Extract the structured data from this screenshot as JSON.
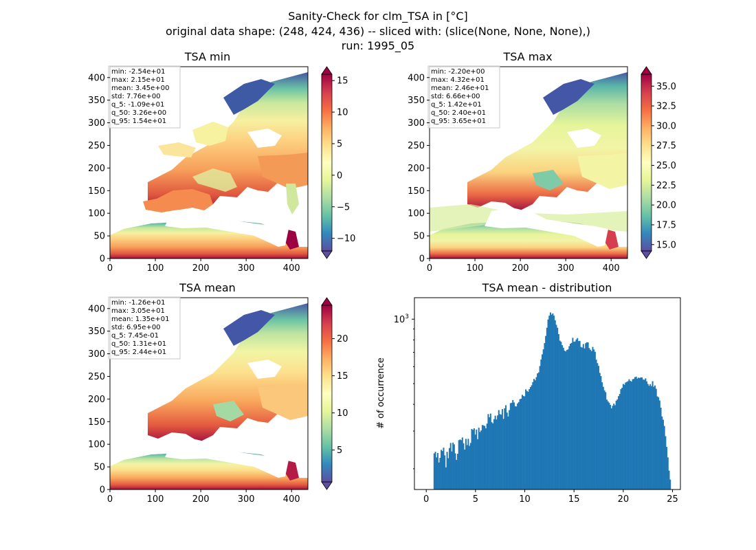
{
  "figure": {
    "title_lines": [
      "Sanity-Check for clm_TSA in [°C]",
      "original data shape: (248, 424, 436) -- sliced with: (slice(None, None, None),)",
      "run: 1995_05"
    ]
  },
  "chart_data": [
    {
      "id": "tsa_min",
      "type": "heatmap",
      "title": "TSA min",
      "x_ticks": [
        0,
        100,
        200,
        300,
        400
      ],
      "y_ticks": [
        0,
        50,
        100,
        150,
        200,
        250,
        300,
        350,
        400
      ],
      "xlim": [
        0,
        436
      ],
      "ylim": [
        0,
        424
      ],
      "colormap": "Spectral_r",
      "colorbar": {
        "range": [
          -12,
          16
        ],
        "ticks": [
          -10,
          -5,
          0,
          5,
          10,
          15
        ],
        "tick_labels": [
          "−10",
          "−5",
          "0",
          "5",
          "10",
          "15"
        ],
        "extend": "both"
      },
      "stats": [
        "min: -2.54e+01",
        "max: 2.15e+01",
        "mean: 3.45e+00",
        "std: 7.76e+00",
        "q_5: -1.09e+01",
        "q_50: 3.26e+00",
        "q_95: 1.54e+01"
      ]
    },
    {
      "id": "tsa_max",
      "type": "heatmap",
      "title": "TSA max",
      "x_ticks": [
        0,
        100,
        200,
        300,
        400
      ],
      "y_ticks": [
        0,
        50,
        100,
        150,
        200,
        250,
        300,
        350,
        400
      ],
      "xlim": [
        0,
        436
      ],
      "ylim": [
        0,
        424
      ],
      "colormap": "Spectral_r",
      "colorbar": {
        "range": [
          14.2,
          36.5
        ],
        "ticks": [
          15.0,
          17.5,
          20.0,
          22.5,
          25.0,
          27.5,
          30.0,
          32.5,
          35.0
        ],
        "tick_labels": [
          "15.0",
          "17.5",
          "20.0",
          "22.5",
          "25.0",
          "27.5",
          "30.0",
          "32.5",
          "35.0"
        ],
        "extend": "both"
      },
      "stats": [
        "min: -2.20e+00",
        "max: 4.32e+01",
        "mean: 2.46e+01",
        "std: 6.66e+00",
        "q_5: 1.42e+01",
        "q_50: 2.40e+01",
        "q_95: 3.65e+01"
      ]
    },
    {
      "id": "tsa_mean",
      "type": "heatmap",
      "title": "TSA mean",
      "x_ticks": [
        0,
        100,
        200,
        300,
        400
      ],
      "y_ticks": [
        0,
        50,
        100,
        150,
        200,
        250,
        300,
        350,
        400
      ],
      "xlim": [
        0,
        436
      ],
      "ylim": [
        0,
        424
      ],
      "colormap": "Spectral_r",
      "colorbar": {
        "range": [
          0.7,
          24.5
        ],
        "ticks": [
          5,
          10,
          15,
          20
        ],
        "tick_labels": [
          "5",
          "10",
          "15",
          "20"
        ],
        "extend": "both"
      },
      "stats": [
        "min: -1.26e+01",
        "max: 3.05e+01",
        "mean: 1.35e+01",
        "std: 6.95e+00",
        "q_5: 7.45e-01",
        "q_50: 1.31e+01",
        "q_95: 2.44e+01"
      ]
    },
    {
      "id": "tsa_mean_dist",
      "type": "bar",
      "title": "TSA mean - distribution",
      "ylabel": "# of occurrence",
      "yscale": "log",
      "xlim": [
        -1.2,
        25.8
      ],
      "ylim": [
        160,
        1260
      ],
      "x_ticks": [
        0,
        5,
        10,
        15,
        20,
        25
      ],
      "y_ticks": [
        1000
      ],
      "y_tick_labels": [
        "10"
      ],
      "y_tick_exponent": "3",
      "color": "#1f77b4",
      "bins": {
        "start": 0.74,
        "width": 0.1192,
        "counts": [
          236,
          240,
          226,
          237,
          214,
          225,
          245,
          242,
          251,
          231,
          203,
          240,
          224,
          250,
          264,
          241,
          265,
          260,
          236,
          220,
          235,
          272,
          274,
          272,
          280,
          263,
          246,
          276,
          258,
          276,
          256,
          264,
          307,
          304,
          309,
          289,
          305,
          275,
          311,
          297,
          302,
          320,
          319,
          317,
          309,
          325,
          360,
          348,
          362,
          330,
          326,
          341,
          354,
          340,
          355,
          376,
          360,
          358,
          380,
          342,
          383,
          396,
          366,
          351,
          376,
          405,
          407,
          419,
          408,
          392,
          391,
          404,
          410,
          423,
          425,
          443,
          438,
          436,
          470,
          462,
          458,
          471,
          482,
          491,
          508,
          526,
          518,
          536,
          558,
          564,
          604,
          648,
          685,
          723,
          773,
          835,
          912,
          997,
          1038,
          1075,
          1050,
          1064,
          1039,
          988,
          941,
          912,
          851,
          794,
          784,
          756,
          736,
          713,
          707,
          718,
          722,
          748,
          768,
          775,
          818,
          784,
          787,
          804,
          816,
          790,
          792,
          742,
          737,
          765,
          730,
          772,
          780,
          779,
          733,
          720,
          710,
          742,
          722,
          704,
          647,
          623,
          605,
          561,
          542,
          507,
          483,
          465,
          456,
          421,
          413,
          407,
          398,
          383,
          394,
          403,
          396,
          416,
          422,
          437,
          447,
          471,
          478,
          498,
          494,
          506,
          509,
          513,
          524,
          515,
          511,
          524,
          526,
          536,
          539,
          528,
          533,
          531,
          535,
          534,
          522,
          521,
          529,
          512,
          498,
          488,
          497,
          487,
          513,
          483,
          490,
          473,
          436,
          432,
          417,
          386,
          351,
          339,
          317,
          284,
          253,
          226,
          196,
          178
        ]
      }
    }
  ]
}
